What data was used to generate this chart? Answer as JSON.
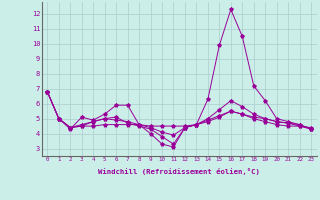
{
  "xlabel": "Windchill (Refroidissement éolien,°C)",
  "ylabel": "",
  "background_color": "#cceee8",
  "grid_color": "#aacccc",
  "line_color": "#990099",
  "xlim": [
    -0.5,
    23.5
  ],
  "ylim": [
    2.5,
    12.8
  ],
  "xticks": [
    0,
    1,
    2,
    3,
    4,
    5,
    6,
    7,
    8,
    9,
    10,
    11,
    12,
    13,
    14,
    15,
    16,
    17,
    18,
    19,
    20,
    21,
    22,
    23
  ],
  "yticks": [
    3,
    4,
    5,
    6,
    7,
    8,
    9,
    10,
    11,
    12
  ],
  "series": [
    [
      6.8,
      5.0,
      4.3,
      5.1,
      4.9,
      5.3,
      5.9,
      5.9,
      4.6,
      4.0,
      3.3,
      3.1,
      4.4,
      4.6,
      6.3,
      9.9,
      12.3,
      10.5,
      7.2,
      6.2,
      5.0,
      4.8,
      4.6,
      4.3
    ],
    [
      6.8,
      5.0,
      4.4,
      4.5,
      4.5,
      4.6,
      4.6,
      4.6,
      4.6,
      4.5,
      4.5,
      4.5,
      4.5,
      4.6,
      4.8,
      5.1,
      5.5,
      5.3,
      5.0,
      4.8,
      4.6,
      4.5,
      4.5,
      4.4
    ],
    [
      6.8,
      5.0,
      4.4,
      4.5,
      4.8,
      5.0,
      5.1,
      4.7,
      4.5,
      4.3,
      3.8,
      3.3,
      4.4,
      4.6,
      5.0,
      5.6,
      6.2,
      5.8,
      5.3,
      5.0,
      4.8,
      4.7,
      4.6,
      4.3
    ],
    [
      6.8,
      5.0,
      4.4,
      4.6,
      4.8,
      5.0,
      4.9,
      4.8,
      4.6,
      4.4,
      4.1,
      3.9,
      4.4,
      4.6,
      4.9,
      5.2,
      5.5,
      5.3,
      5.1,
      5.0,
      4.8,
      4.7,
      4.5,
      4.3
    ]
  ]
}
